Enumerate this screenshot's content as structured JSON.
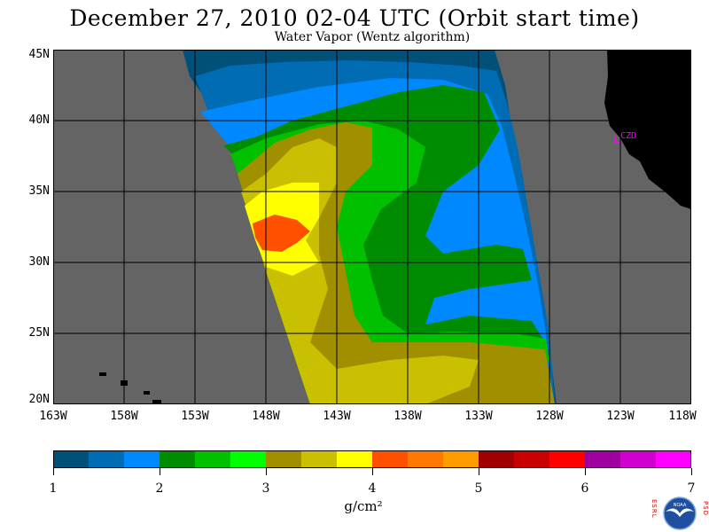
{
  "title": "December 27, 2010  02-04 UTC  (Orbit start time)",
  "subtitle": "Water Vapor (Wentz algorithm)",
  "map": {
    "lat_labels": [
      "45N",
      "40N",
      "35N",
      "30N",
      "25N",
      "20N"
    ],
    "lon_labels": [
      "163W",
      "158W",
      "153W",
      "148W",
      "143W",
      "138W",
      "133W",
      "128W",
      "123W",
      "118W"
    ],
    "station_label": "CZD",
    "colors": {
      "nodata": "#646464",
      "land": "#000000",
      "station": "#ff00ff"
    }
  },
  "colorbar": {
    "colors": [
      "#00507a",
      "#006cb4",
      "#0088ff",
      "#008c00",
      "#00c000",
      "#00ff00",
      "#a09000",
      "#c8c000",
      "#ffff00",
      "#ff5000",
      "#ff7800",
      "#ff9c00",
      "#a00000",
      "#c80000",
      "#ff0000",
      "#a000a0",
      "#d000d0",
      "#ff00ff"
    ],
    "tick_labels": [
      "1",
      "2",
      "3",
      "4",
      "5",
      "6",
      "7"
    ],
    "units_label": "g/cm²"
  },
  "logo": {
    "left_letters": "ESRL",
    "right_letters": "PSD",
    "center_text": "NOAA"
  }
}
